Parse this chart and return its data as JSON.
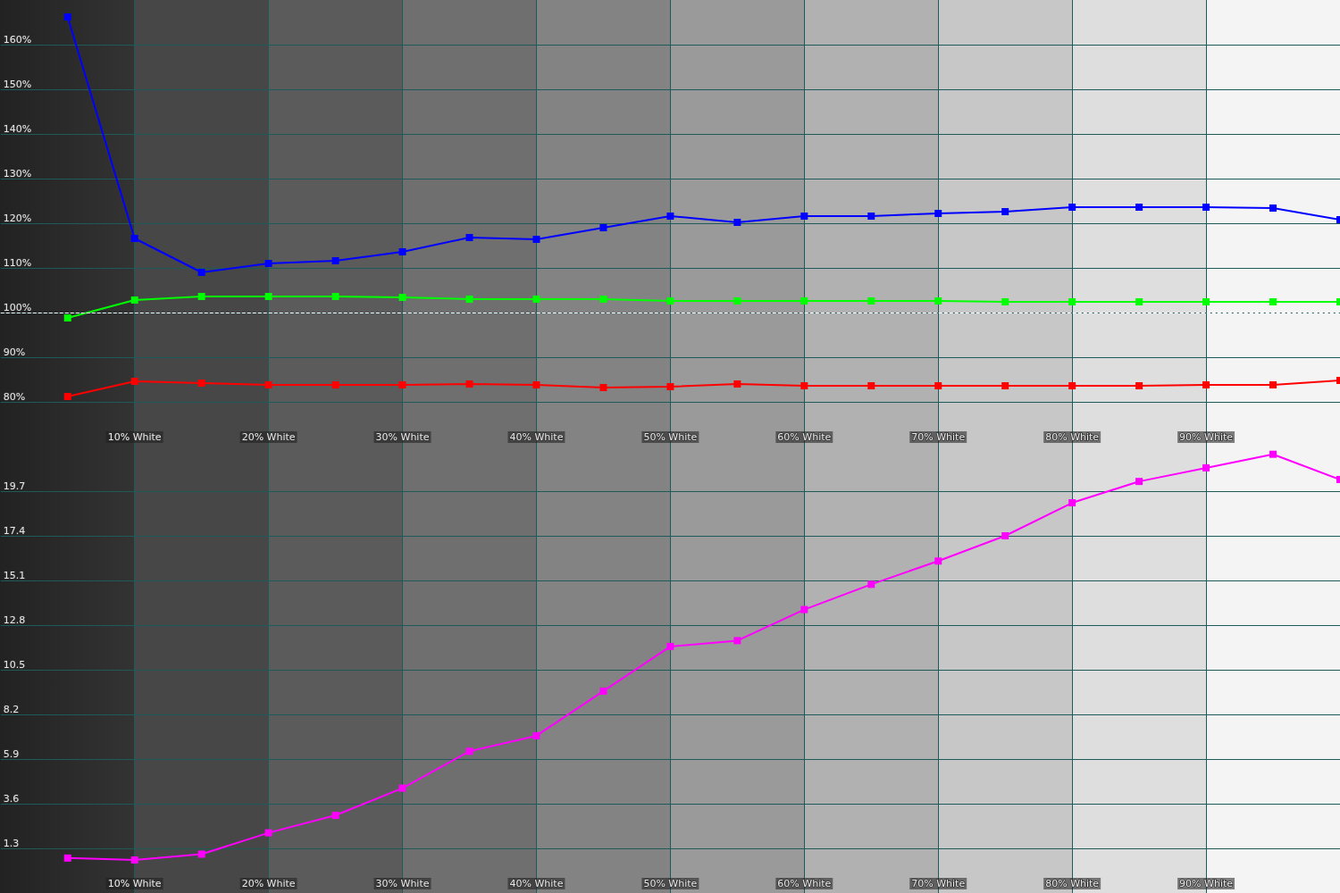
{
  "chart_data": [
    {
      "type": "line",
      "x": [
        5,
        10,
        15,
        20,
        25,
        30,
        35,
        40,
        45,
        50,
        55,
        60,
        65,
        70,
        75,
        80,
        85,
        90,
        95,
        100
      ],
      "xlim": [
        0,
        100
      ],
      "xticks": [
        {
          "value": 10,
          "label": "10% White"
        },
        {
          "value": 20,
          "label": "20% White"
        },
        {
          "value": 30,
          "label": "30% White"
        },
        {
          "value": 40,
          "label": "40% White"
        },
        {
          "value": 50,
          "label": "50% White"
        },
        {
          "value": 60,
          "label": "60% White"
        },
        {
          "value": 70,
          "label": "70% White"
        },
        {
          "value": 80,
          "label": "80% White"
        },
        {
          "value": 90,
          "label": "90% White"
        }
      ],
      "ylim": [
        70,
        170
      ],
      "yticks": [
        {
          "value": 80,
          "label": "80%"
        },
        {
          "value": 90,
          "label": "90%"
        },
        {
          "value": 100,
          "label": "100%"
        },
        {
          "value": 110,
          "label": "110%"
        },
        {
          "value": 120,
          "label": "120%"
        },
        {
          "value": 130,
          "label": "130%"
        },
        {
          "value": 140,
          "label": "140%"
        },
        {
          "value": 150,
          "label": "150%"
        },
        {
          "value": 160,
          "label": "160%"
        }
      ],
      "series": [
        {
          "color": "#0000ff",
          "values": [
            166.2,
            116.6,
            109,
            111,
            111.6,
            113.6,
            116.8,
            116.4,
            119,
            121.6,
            120.2,
            121.6,
            121.6,
            122.2,
            122.6,
            123.6,
            123.6,
            123.6,
            123.4,
            120.8
          ]
        },
        {
          "color": "#00ff00",
          "values": [
            98.8,
            102.8,
            103.6,
            103.6,
            103.6,
            103.4,
            103,
            103,
            103,
            102.6,
            102.6,
            102.6,
            102.6,
            102.6,
            102.4,
            102.4,
            102.4,
            102.4,
            102.4,
            102.4
          ]
        },
        {
          "color": "#ff0000",
          "values": [
            81.2,
            84.6,
            84.2,
            83.8,
            83.8,
            83.8,
            84,
            83.8,
            83.2,
            83.4,
            84,
            83.6,
            83.6,
            83.6,
            83.6,
            83.6,
            83.6,
            83.8,
            83.8,
            84.8
          ]
        }
      ],
      "ref_lines": [
        {
          "axis": "y",
          "value": 100,
          "color": "#ffffff",
          "line_style": "dashed"
        }
      ],
      "marker": "square",
      "line_style": "solid",
      "grid": true
    },
    {
      "type": "line",
      "x": [
        5,
        10,
        15,
        20,
        25,
        30,
        35,
        40,
        45,
        50,
        55,
        60,
        65,
        70,
        75,
        80,
        85,
        90,
        95,
        100
      ],
      "xlim": [
        0,
        100
      ],
      "xticks": [
        {
          "value": 10,
          "label": "10% White"
        },
        {
          "value": 20,
          "label": "20% White"
        },
        {
          "value": 30,
          "label": "30% White"
        },
        {
          "value": 40,
          "label": "40% White"
        },
        {
          "value": 50,
          "label": "50% White"
        },
        {
          "value": 60,
          "label": "60% White"
        },
        {
          "value": 70,
          "label": "70% White"
        },
        {
          "value": 80,
          "label": "80% White"
        },
        {
          "value": 90,
          "label": "90% White"
        }
      ],
      "ylim": [
        -1,
        22
      ],
      "yticks": [
        1.3,
        3.6,
        5.9,
        8.2,
        10.5,
        12.8,
        15.1,
        17.4,
        19.7
      ],
      "series": [
        {
          "color": "#ff00ff",
          "values": [
            0.8,
            0.7,
            1.0,
            2.1,
            3.0,
            4.4,
            6.3,
            7.1,
            9.4,
            11.7,
            12.0,
            13.6,
            14.9,
            16.1,
            17.4,
            19.1,
            20.2,
            20.9,
            21.6,
            20.3
          ]
        }
      ],
      "marker": "square",
      "line_style": "solid",
      "grid": true
    }
  ]
}
